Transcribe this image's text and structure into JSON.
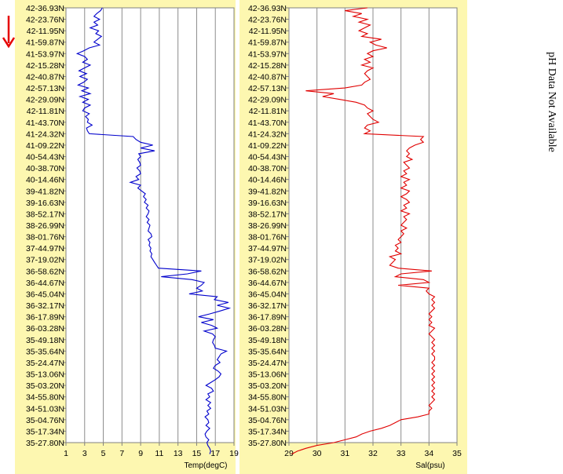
{
  "arrow_icon": "down-arrow-icon",
  "arrow_color": "#e60000",
  "side_note": "pH Data Not Available",
  "chart_data": [
    {
      "type": "line",
      "series": [
        {
          "values": [],
          "color": "#0000cc"
        }
      ],
      "xlabel": "Temp(degC)",
      "xlim": [
        1,
        19
      ],
      "xticks": [
        "1",
        "3",
        "5",
        "7",
        "9",
        "11",
        "13",
        "15",
        "17",
        "19"
      ],
      "y_tick_labels": [
        "42-36.93N",
        "42-23.76N",
        "42-11.95N",
        "41-59.87N",
        "41-53.97N",
        "42-15.28N",
        "42-40.87N",
        "42-57.13N",
        "42-29.09N",
        "42-11.81N",
        "41-43.70N",
        "41-24.32N",
        "41-09.22N",
        "40-54.43N",
        "40-38.70N",
        "40-14.46N",
        "39-41.82N",
        "39-16.63N",
        "38-52.17N",
        "38-26.99N",
        "38-01.76N",
        "37-44.97N",
        "37-19.02N",
        "36-58.62N",
        "36-44.67N",
        "36-45.04N",
        "36-32.17N",
        "36-17.89N",
        "36-03.28N",
        "35-49.18N",
        "35-35.64N",
        "35-24.47N",
        "35-13.06N",
        "35-03.20N",
        "34-55.80N",
        "34-51.03N",
        "35-04.76N",
        "35-17.34N",
        "35-27.80N"
      ],
      "profile": [
        [
          0,
          4.9
        ],
        [
          0.25,
          4.7
        ],
        [
          0.5,
          4.3
        ],
        [
          0.75,
          4.0
        ],
        [
          1.0,
          4.6
        ],
        [
          1.25,
          4.0
        ],
        [
          1.5,
          4.4
        ],
        [
          1.75,
          3.6
        ],
        [
          2.0,
          4.5
        ],
        [
          2.25,
          4.2
        ],
        [
          2.5,
          4.8
        ],
        [
          2.75,
          4.4
        ],
        [
          3.0,
          4.0
        ],
        [
          3.25,
          4.6
        ],
        [
          3.5,
          3.5
        ],
        [
          3.75,
          2.9
        ],
        [
          4.0,
          2.2
        ],
        [
          4.25,
          3.0
        ],
        [
          4.5,
          3.3
        ],
        [
          4.75,
          2.8
        ],
        [
          5.0,
          3.6
        ],
        [
          5.25,
          3.0
        ],
        [
          5.5,
          2.4
        ],
        [
          5.75,
          3.2
        ],
        [
          6.0,
          2.5
        ],
        [
          6.25,
          3.3
        ],
        [
          6.5,
          2.9
        ],
        [
          6.75,
          2.3
        ],
        [
          7.0,
          3.4
        ],
        [
          7.25,
          2.7
        ],
        [
          7.5,
          3.6
        ],
        [
          7.75,
          2.5
        ],
        [
          8.0,
          3.4
        ],
        [
          8.25,
          2.8
        ],
        [
          8.5,
          3.6
        ],
        [
          8.75,
          3.0
        ],
        [
          9.0,
          2.8
        ],
        [
          9.25,
          3.5
        ],
        [
          9.5,
          3.1
        ],
        [
          9.75,
          3.4
        ],
        [
          10.0,
          3.3
        ],
        [
          10.25,
          3.8
        ],
        [
          10.5,
          3.2
        ],
        [
          10.75,
          3.3
        ],
        [
          11.0,
          3.5
        ],
        [
          11.25,
          8.2
        ],
        [
          11.5,
          8.5
        ],
        [
          11.75,
          9.0
        ],
        [
          12.0,
          10.3
        ],
        [
          12.25,
          9.0
        ],
        [
          12.5,
          10.5
        ],
        [
          12.75,
          8.8
        ],
        [
          13.0,
          9.0
        ],
        [
          13.25,
          8.7
        ],
        [
          13.5,
          8.9
        ],
        [
          13.75,
          9.0
        ],
        [
          14.0,
          8.6
        ],
        [
          14.25,
          8.9
        ],
        [
          14.5,
          9.0
        ],
        [
          14.75,
          8.5
        ],
        [
          15.0,
          8.8
        ],
        [
          15.25,
          7.9
        ],
        [
          15.5,
          9.0
        ],
        [
          15.75,
          8.7
        ],
        [
          16.0,
          9.1
        ],
        [
          16.25,
          9.5
        ],
        [
          16.5,
          9.3
        ],
        [
          16.75,
          9.6
        ],
        [
          17.0,
          9.4
        ],
        [
          17.25,
          9.8
        ],
        [
          17.5,
          9.6
        ],
        [
          17.75,
          9.9
        ],
        [
          18.0,
          9.8
        ],
        [
          18.25,
          9.6
        ],
        [
          18.5,
          9.9
        ],
        [
          18.75,
          9.7
        ],
        [
          19.0,
          10.0
        ],
        [
          19.25,
          9.9
        ],
        [
          19.5,
          9.8
        ],
        [
          19.75,
          10.1
        ],
        [
          20.0,
          10.2
        ],
        [
          20.25,
          9.8
        ],
        [
          20.5,
          10.0
        ],
        [
          20.75,
          9.9
        ],
        [
          21.0,
          10.1
        ],
        [
          21.25,
          10.0
        ],
        [
          21.5,
          10.2
        ],
        [
          21.75,
          10.1
        ],
        [
          22.0,
          10.3
        ],
        [
          22.25,
          10.5
        ],
        [
          22.5,
          10.7
        ],
        [
          22.75,
          10.9
        ],
        [
          23.0,
          15.5
        ],
        [
          23.25,
          14.0
        ],
        [
          23.5,
          11.2
        ],
        [
          23.75,
          14.5
        ],
        [
          24.0,
          15.8
        ],
        [
          24.25,
          15.5
        ],
        [
          24.5,
          15.0
        ],
        [
          24.75,
          15.6
        ],
        [
          25.0,
          14.2
        ],
        [
          25.25,
          17.2
        ],
        [
          25.5,
          16.9
        ],
        [
          25.75,
          18.4
        ],
        [
          26.0,
          17.2
        ],
        [
          26.25,
          18.5
        ],
        [
          26.5,
          17.5
        ],
        [
          26.75,
          16.4
        ],
        [
          27.0,
          15.2
        ],
        [
          27.25,
          16.8
        ],
        [
          27.5,
          15.5
        ],
        [
          27.75,
          16.6
        ],
        [
          28.0,
          17.2
        ],
        [
          28.25,
          15.8
        ],
        [
          28.5,
          16.7
        ],
        [
          28.75,
          17.0
        ],
        [
          29.0,
          16.8
        ],
        [
          29.25,
          16.7
        ],
        [
          29.5,
          16.9
        ],
        [
          29.75,
          17.0
        ],
        [
          30.0,
          18.2
        ],
        [
          30.25,
          17.6
        ],
        [
          30.5,
          17.4
        ],
        [
          30.75,
          17.2
        ],
        [
          31.0,
          17.5
        ],
        [
          31.25,
          17.0
        ],
        [
          31.5,
          16.8
        ],
        [
          31.75,
          17.3
        ],
        [
          32.0,
          17.6
        ],
        [
          32.25,
          17.4
        ],
        [
          32.5,
          17.0
        ],
        [
          32.75,
          16.5
        ],
        [
          33.0,
          16.0
        ],
        [
          33.25,
          16.6
        ],
        [
          33.5,
          16.8
        ],
        [
          33.75,
          16.2
        ],
        [
          34.0,
          16.4
        ],
        [
          34.25,
          16.0
        ],
        [
          34.5,
          16.5
        ],
        [
          34.75,
          16.2
        ],
        [
          35.0,
          16.5
        ],
        [
          35.25,
          16.1
        ],
        [
          35.5,
          16.3
        ],
        [
          35.75,
          15.9
        ],
        [
          36.0,
          16.2
        ],
        [
          36.25,
          16.3
        ],
        [
          36.5,
          16.0
        ],
        [
          36.75,
          16.4
        ],
        [
          37.0,
          16.1
        ],
        [
          37.25,
          15.9
        ],
        [
          37.5,
          16.0
        ],
        [
          37.75,
          16.3
        ],
        [
          38.0,
          16.1
        ],
        [
          38.25,
          16.2
        ],
        [
          38.5,
          16.4
        ],
        [
          38.75,
          16.5
        ],
        [
          39.0,
          16.4
        ]
      ]
    },
    {
      "type": "line",
      "series": [
        {
          "values": [],
          "color": "#e00000"
        }
      ],
      "xlabel": "Sal(psu)",
      "xlim": [
        29,
        35
      ],
      "xticks": [
        "29",
        "30",
        "31",
        "32",
        "33",
        "34",
        "35"
      ],
      "y_tick_labels": [
        "42-36.93N",
        "42-23.76N",
        "42-11.95N",
        "41-59.87N",
        "41-53.97N",
        "42-15.28N",
        "42-40.87N",
        "42-57.13N",
        "42-29.09N",
        "42-11.81N",
        "41-43.70N",
        "41-24.32N",
        "41-09.22N",
        "40-54.43N",
        "40-38.70N",
        "40-14.46N",
        "39-41.82N",
        "39-16.63N",
        "38-52.17N",
        "38-26.99N",
        "38-01.76N",
        "37-44.97N",
        "37-19.02N",
        "36-58.62N",
        "36-44.67N",
        "36-45.04N",
        "36-32.17N",
        "36-17.89N",
        "36-03.28N",
        "35-49.18N",
        "35-35.64N",
        "35-24.47N",
        "35-13.06N",
        "35-03.20N",
        "34-55.80N",
        "34-51.03N",
        "35-04.76N",
        "35-17.34N",
        "35-27.80N"
      ],
      "profile": [
        [
          0,
          31.8
        ],
        [
          0.25,
          31.0
        ],
        [
          0.5,
          31.6
        ],
        [
          0.75,
          31.3
        ],
        [
          1.0,
          31.8
        ],
        [
          1.25,
          31.5
        ],
        [
          1.5,
          31.9
        ],
        [
          1.75,
          31.7
        ],
        [
          2.0,
          31.5
        ],
        [
          2.25,
          31.8
        ],
        [
          2.5,
          31.6
        ],
        [
          2.75,
          32.3
        ],
        [
          3.0,
          31.9
        ],
        [
          3.25,
          32.1
        ],
        [
          3.5,
          32.5
        ],
        [
          3.75,
          32.0
        ],
        [
          4.0,
          31.8
        ],
        [
          4.25,
          32.0
        ],
        [
          4.5,
          31.7
        ],
        [
          4.75,
          31.9
        ],
        [
          5.0,
          31.6
        ],
        [
          5.25,
          32.0
        ],
        [
          5.5,
          31.8
        ],
        [
          5.75,
          31.7
        ],
        [
          6.0,
          31.8
        ],
        [
          6.25,
          31.9
        ],
        [
          6.5,
          31.7
        ],
        [
          6.75,
          31.6
        ],
        [
          7.0,
          31.0
        ],
        [
          7.25,
          29.6
        ],
        [
          7.5,
          30.6
        ],
        [
          7.75,
          30.2
        ],
        [
          8.0,
          30.8
        ],
        [
          8.25,
          31.4
        ],
        [
          8.5,
          31.7
        ],
        [
          8.75,
          31.8
        ],
        [
          9.0,
          32.0
        ],
        [
          9.25,
          31.8
        ],
        [
          9.5,
          31.9
        ],
        [
          9.75,
          32.0
        ],
        [
          10.0,
          32.2
        ],
        [
          10.25,
          31.8
        ],
        [
          10.5,
          31.7
        ],
        [
          10.75,
          31.9
        ],
        [
          11.0,
          31.7
        ],
        [
          11.25,
          33.8
        ],
        [
          11.5,
          33.7
        ],
        [
          11.75,
          33.8
        ],
        [
          12.0,
          33.5
        ],
        [
          12.25,
          33.3
        ],
        [
          12.5,
          33.2
        ],
        [
          12.75,
          33.3
        ],
        [
          13.0,
          33.2
        ],
        [
          13.25,
          33.4
        ],
        [
          13.5,
          33.1
        ],
        [
          13.75,
          33.2
        ],
        [
          14.0,
          33.3
        ],
        [
          14.25,
          33.1
        ],
        [
          14.5,
          33.2
        ],
        [
          14.75,
          33.0
        ],
        [
          15.0,
          33.3
        ],
        [
          15.25,
          33.1
        ],
        [
          15.5,
          33.2
        ],
        [
          15.75,
          33.0
        ],
        [
          16.0,
          33.3
        ],
        [
          16.25,
          33.2
        ],
        [
          16.5,
          33.0
        ],
        [
          16.75,
          33.2
        ],
        [
          17.0,
          33.3
        ],
        [
          17.25,
          33.1
        ],
        [
          17.5,
          33.2
        ],
        [
          17.75,
          33.0
        ],
        [
          18.0,
          33.3
        ],
        [
          18.25,
          33.1
        ],
        [
          18.5,
          33.2
        ],
        [
          18.75,
          33.1
        ],
        [
          19.0,
          33.0
        ],
        [
          19.25,
          33.2
        ],
        [
          19.5,
          33.0
        ],
        [
          19.75,
          33.1
        ],
        [
          20.0,
          33.0
        ],
        [
          20.25,
          32.9
        ],
        [
          20.5,
          33.0
        ],
        [
          20.75,
          32.8
        ],
        [
          21.0,
          32.9
        ],
        [
          21.25,
          32.8
        ],
        [
          21.5,
          33.0
        ],
        [
          21.75,
          32.6
        ],
        [
          22.0,
          32.8
        ],
        [
          22.25,
          32.7
        ],
        [
          22.5,
          32.6
        ],
        [
          22.75,
          32.9
        ],
        [
          23.0,
          34.1
        ],
        [
          23.25,
          33.0
        ],
        [
          23.5,
          32.8
        ],
        [
          23.75,
          33.8
        ],
        [
          24.0,
          34.0
        ],
        [
          24.25,
          32.9
        ],
        [
          24.5,
          34.0
        ],
        [
          24.75,
          33.9
        ],
        [
          25.0,
          34.0
        ],
        [
          25.25,
          34.2
        ],
        [
          25.5,
          34.1
        ],
        [
          25.75,
          34.2
        ],
        [
          26.0,
          34.1
        ],
        [
          26.25,
          34.2
        ],
        [
          26.5,
          34.1
        ],
        [
          26.75,
          34.0
        ],
        [
          27.0,
          34.1
        ],
        [
          27.25,
          34.0
        ],
        [
          27.5,
          34.1
        ],
        [
          27.75,
          34.0
        ],
        [
          28.0,
          34.2
        ],
        [
          28.25,
          34.1
        ],
        [
          28.5,
          34.0
        ],
        [
          28.75,
          34.1
        ],
        [
          29.0,
          34.2
        ],
        [
          29.25,
          34.1
        ],
        [
          29.5,
          34.2
        ],
        [
          29.75,
          34.1
        ],
        [
          30.0,
          34.2
        ],
        [
          30.25,
          34.1
        ],
        [
          30.5,
          34.2
        ],
        [
          30.75,
          34.2
        ],
        [
          31.0,
          34.1
        ],
        [
          31.25,
          34.2
        ],
        [
          31.5,
          34.1
        ],
        [
          31.75,
          34.2
        ],
        [
          32.0,
          34.1
        ],
        [
          32.25,
          34.2
        ],
        [
          32.5,
          34.1
        ],
        [
          32.75,
          34.2
        ],
        [
          33.0,
          34.1
        ],
        [
          33.25,
          34.2
        ],
        [
          33.5,
          34.1
        ],
        [
          33.75,
          34.2
        ],
        [
          34.0,
          34.1
        ],
        [
          34.25,
          34.2
        ],
        [
          34.5,
          34.1
        ],
        [
          34.75,
          34.0
        ],
        [
          35.0,
          34.1
        ],
        [
          35.25,
          34.0
        ],
        [
          35.5,
          34.0
        ],
        [
          35.75,
          33.6
        ],
        [
          36.0,
          33.0
        ],
        [
          36.25,
          32.8
        ],
        [
          36.5,
          32.6
        ],
        [
          36.75,
          32.3
        ],
        [
          37.0,
          31.9
        ],
        [
          37.25,
          31.6
        ],
        [
          37.5,
          31.4
        ],
        [
          37.75,
          31.0
        ],
        [
          38.0,
          30.6
        ],
        [
          38.25,
          30.0
        ],
        [
          38.5,
          29.6
        ],
        [
          38.75,
          29.3
        ],
        [
          39.0,
          29.1
        ]
      ]
    }
  ]
}
